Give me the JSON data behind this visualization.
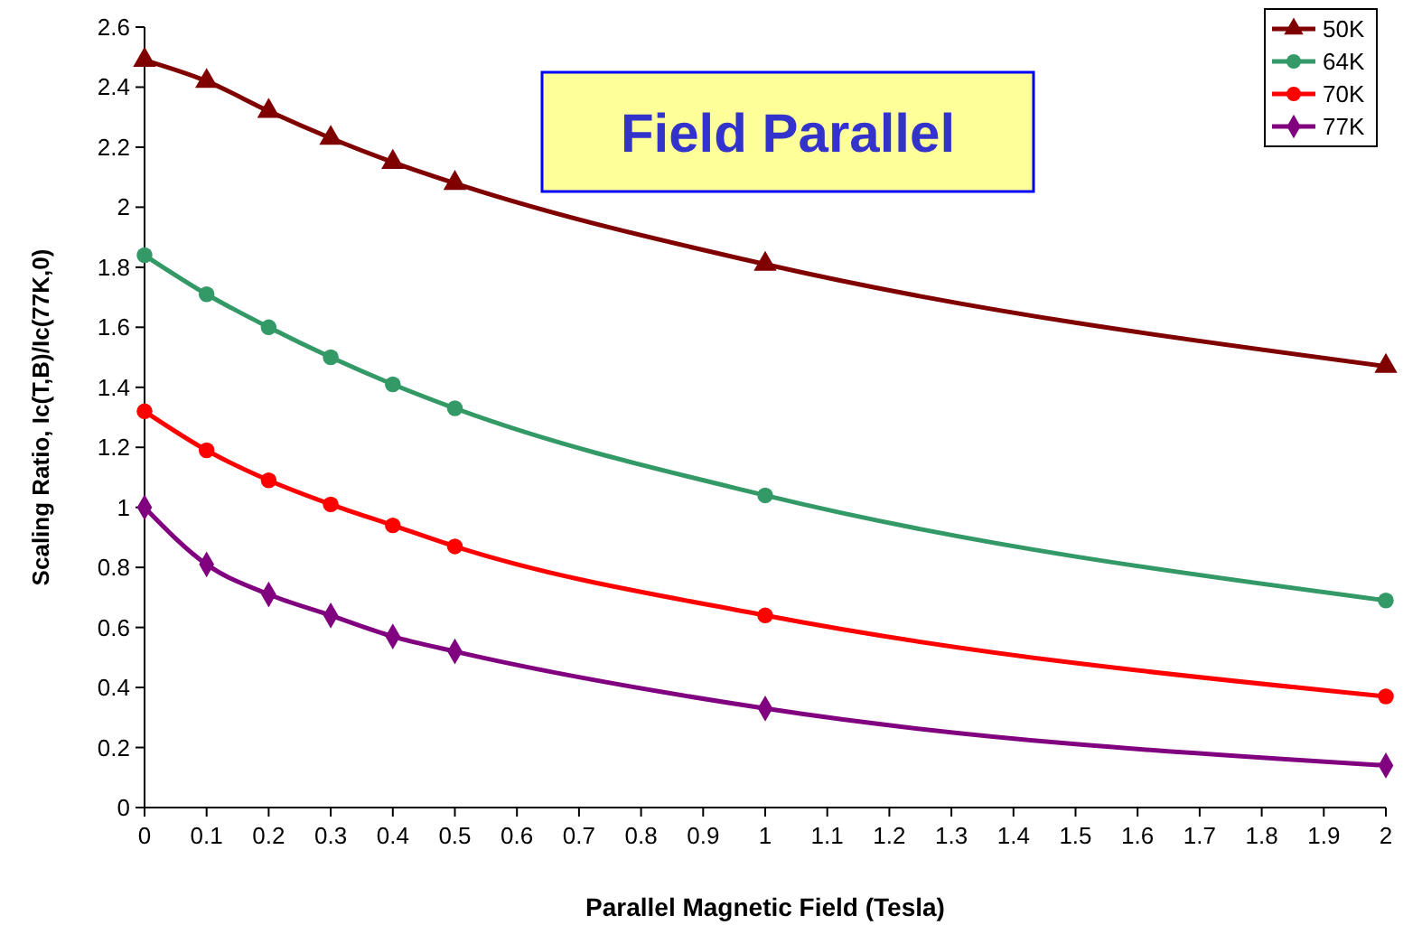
{
  "chart_data": {
    "type": "line",
    "title": "Field Parallel",
    "xlabel": "Parallel Magnetic Field (Tesla)",
    "ylabel": "Scaling Ratio, Ic(T,B)/Ic(77K,0)",
    "x": [
      0,
      0.1,
      0.2,
      0.3,
      0.4,
      0.5,
      1,
      2
    ],
    "series": [
      {
        "name": "50K",
        "color": "#800000",
        "marker": "triangle",
        "values": [
          2.49,
          2.42,
          2.32,
          2.23,
          2.15,
          2.08,
          1.81,
          1.47
        ]
      },
      {
        "name": "64K",
        "color": "#339966",
        "marker": "circle",
        "values": [
          1.84,
          1.71,
          1.6,
          1.5,
          1.41,
          1.33,
          1.04,
          0.69
        ]
      },
      {
        "name": "70K",
        "color": "#ff0000",
        "marker": "circle",
        "values": [
          1.32,
          1.19,
          1.09,
          1.01,
          0.94,
          0.87,
          0.64,
          0.37
        ]
      },
      {
        "name": "77K",
        "color": "#800080",
        "marker": "diamond",
        "values": [
          1.0,
          0.81,
          0.71,
          0.64,
          0.57,
          0.52,
          0.33,
          0.14
        ]
      }
    ],
    "xlim": [
      0,
      2
    ],
    "xticks": [
      0,
      0.1,
      0.2,
      0.3,
      0.4,
      0.5,
      0.6,
      0.7,
      0.8,
      0.9,
      1,
      1.1,
      1.2,
      1.3,
      1.4,
      1.5,
      1.6,
      1.7,
      1.8,
      1.9,
      2
    ],
    "ylim": [
      0,
      2.6
    ],
    "yticks": [
      0,
      0.2,
      0.4,
      0.6,
      0.8,
      1,
      1.2,
      1.4,
      1.6,
      1.8,
      2,
      2.2,
      2.4,
      2.6
    ],
    "legend": "top right",
    "grid": false,
    "line_style": "solid"
  }
}
